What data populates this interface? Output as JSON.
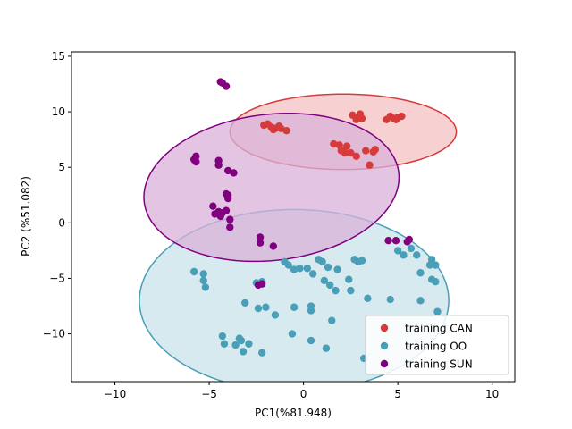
{
  "chart_data": {
    "type": "scatter",
    "title": "",
    "xlabel": "PC1(%81.948)",
    "ylabel": "PC2 (%51.082)",
    "xlim": [
      -12.3,
      11.2
    ],
    "ylim": [
      -14.3,
      15.4
    ],
    "xticks": [
      -10,
      -5,
      0,
      5,
      10
    ],
    "yticks": [
      -10,
      -5,
      0,
      5,
      10,
      15
    ],
    "xtick_labels": [
      "−10",
      "−5",
      "0",
      "5",
      "10"
    ],
    "ytick_labels": [
      "−10",
      "−5",
      "0",
      "5",
      "10",
      "15"
    ],
    "grid": false,
    "legend_position": "lower-right",
    "series": [
      {
        "name": "training CAN",
        "color": "#d63b3b",
        "fill": "#f4c2c2",
        "ellipse": {
          "center": [
            2.1,
            8.2
          ],
          "width": 12.0,
          "height": 6.8,
          "angle_deg": 0
        },
        "points": [
          [
            -2.1,
            8.8
          ],
          [
            -1.9,
            8.9
          ],
          [
            -1.7,
            8.6
          ],
          [
            -1.5,
            8.5
          ],
          [
            -1.3,
            8.7
          ],
          [
            -1.6,
            8.4
          ],
          [
            -1.2,
            8.5
          ],
          [
            -0.9,
            8.3
          ],
          [
            1.6,
            7.1
          ],
          [
            1.9,
            7.0
          ],
          [
            2.3,
            6.9
          ],
          [
            2.0,
            6.5
          ],
          [
            2.5,
            6.3
          ],
          [
            2.2,
            6.3
          ],
          [
            2.8,
            6.0
          ],
          [
            3.3,
            6.5
          ],
          [
            3.8,
            6.6
          ],
          [
            3.7,
            6.4
          ],
          [
            3.5,
            5.2
          ],
          [
            2.6,
            9.7
          ],
          [
            2.9,
            9.5
          ],
          [
            3.0,
            9.8
          ],
          [
            2.8,
            9.3
          ],
          [
            3.1,
            9.4
          ],
          [
            4.4,
            9.3
          ],
          [
            4.6,
            9.6
          ],
          [
            4.8,
            9.4
          ],
          [
            5.0,
            9.5
          ],
          [
            5.2,
            9.6
          ],
          [
            4.9,
            9.3
          ]
        ]
      },
      {
        "name": "training OO",
        "color": "#4a9fb8",
        "fill": "#c9e3ea",
        "ellipse": {
          "center": [
            -0.5,
            -7.0
          ],
          "width": 16.4,
          "height": 16.4,
          "angle_deg": 0
        },
        "points": [
          [
            -5.8,
            -4.4
          ],
          [
            -5.3,
            -4.6
          ],
          [
            -5.3,
            -5.2
          ],
          [
            -5.2,
            -5.8
          ],
          [
            -4.3,
            -10.2
          ],
          [
            -4.2,
            -10.9
          ],
          [
            -3.6,
            -11.0
          ],
          [
            -3.4,
            -10.4
          ],
          [
            -3.3,
            -10.6
          ],
          [
            -3.2,
            -11.6
          ],
          [
            -2.9,
            -10.9
          ],
          [
            -2.2,
            -11.7
          ],
          [
            -3.1,
            -7.2
          ],
          [
            -2.4,
            -7.7
          ],
          [
            -2.0,
            -7.6
          ],
          [
            -1.5,
            -8.3
          ],
          [
            -0.5,
            -7.6
          ],
          [
            -0.6,
            -10.0
          ],
          [
            0.4,
            -10.6
          ],
          [
            1.2,
            -11.3
          ],
          [
            0.4,
            -7.9
          ],
          [
            0.4,
            -7.5
          ],
          [
            1.5,
            -8.8
          ],
          [
            3.4,
            -6.8
          ],
          [
            4.6,
            -6.9
          ],
          [
            3.2,
            -12.2
          ],
          [
            -2.5,
            -5.4
          ],
          [
            -2.2,
            -5.3
          ],
          [
            -1.0,
            -3.5
          ],
          [
            -0.8,
            -3.8
          ],
          [
            -0.5,
            -4.2
          ],
          [
            -0.2,
            -4.1
          ],
          [
            0.2,
            -4.1
          ],
          [
            0.5,
            -4.6
          ],
          [
            0.8,
            -3.3
          ],
          [
            1.0,
            -3.5
          ],
          [
            1.3,
            -4.0
          ],
          [
            1.8,
            -4.2
          ],
          [
            2.4,
            -5.1
          ],
          [
            2.5,
            -6.1
          ],
          [
            1.1,
            -5.2
          ],
          [
            1.4,
            -5.6
          ],
          [
            1.7,
            -6.1
          ],
          [
            2.7,
            -3.3
          ],
          [
            2.9,
            -3.5
          ],
          [
            3.1,
            -3.4
          ],
          [
            5.0,
            -2.5
          ],
          [
            5.3,
            -2.9
          ],
          [
            5.7,
            -2.3
          ],
          [
            6.0,
            -2.9
          ],
          [
            6.2,
            -4.5
          ],
          [
            6.8,
            -3.3
          ],
          [
            6.7,
            -3.8
          ],
          [
            7.0,
            -3.8
          ],
          [
            6.8,
            -5.1
          ],
          [
            7.0,
            -5.3
          ],
          [
            6.2,
            -7.0
          ],
          [
            7.1,
            -8.0
          ]
        ]
      },
      {
        "name": "training SUN",
        "color": "#800080",
        "fill": "#d9b1d9",
        "ellipse": {
          "center": [
            -1.7,
            3.2
          ],
          "width": 12.5,
          "height": 14.3,
          "angle_deg": -48
        },
        "points": [
          [
            -4.4,
            12.7
          ],
          [
            -4.3,
            12.6
          ],
          [
            -4.1,
            12.3
          ],
          [
            -5.7,
            6.0
          ],
          [
            -5.8,
            5.7
          ],
          [
            -5.7,
            5.5
          ],
          [
            -4.5,
            5.6
          ],
          [
            -4.5,
            5.2
          ],
          [
            -4.0,
            4.7
          ],
          [
            -3.7,
            4.5
          ],
          [
            -4.1,
            2.6
          ],
          [
            -4.0,
            2.2
          ],
          [
            -4.0,
            2.5
          ],
          [
            -4.8,
            1.5
          ],
          [
            -4.5,
            1.0
          ],
          [
            -4.4,
            0.6
          ],
          [
            -4.3,
            0.9
          ],
          [
            -4.1,
            1.1
          ],
          [
            -4.7,
            0.8
          ],
          [
            -3.9,
            0.3
          ],
          [
            -3.9,
            -0.4
          ],
          [
            -2.3,
            -1.3
          ],
          [
            -2.3,
            -1.8
          ],
          [
            -1.6,
            -2.1
          ],
          [
            -2.2,
            -5.5
          ],
          [
            -2.4,
            -5.6
          ],
          [
            4.5,
            -1.6
          ],
          [
            4.9,
            -1.6
          ],
          [
            5.5,
            -1.7
          ],
          [
            5.6,
            -1.5
          ]
        ]
      }
    ]
  }
}
